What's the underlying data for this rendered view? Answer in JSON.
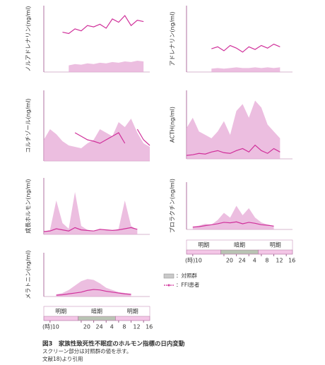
{
  "chart_data": [
    {
      "type": "area",
      "y_label": "ノルアドレナリン(ng/ml)",
      "ylim": [
        0,
        100
      ],
      "x": [
        8,
        10,
        12,
        14,
        16,
        18,
        20,
        22,
        24,
        26,
        28,
        30,
        32,
        34,
        36,
        38,
        40,
        42
      ],
      "series": [
        {
          "color": "#e6a8d6",
          "values": [
            null,
            null,
            null,
            null,
            10,
            12,
            11,
            13,
            12,
            14,
            13,
            15,
            14,
            16,
            15,
            17,
            16,
            null
          ]
        },
        {
          "color": "#d0309a",
          "values": [
            null,
            null,
            null,
            60,
            58,
            65,
            62,
            70,
            68,
            72,
            66,
            80,
            75,
            85,
            70,
            78,
            76,
            null
          ]
        }
      ]
    },
    {
      "type": "area",
      "y_label": "アドレナリン(ng/ml)",
      "ylim": [
        0,
        100
      ],
      "x": [
        8,
        10,
        12,
        14,
        16,
        18,
        20,
        22,
        24,
        26,
        28,
        30,
        32,
        34,
        36,
        38,
        40,
        42
      ],
      "series": [
        {
          "color": "#e6a8d6",
          "values": [
            null,
            null,
            null,
            null,
            5,
            6,
            5,
            6,
            7,
            6,
            6,
            7,
            6,
            7,
            6,
            7,
            null,
            null
          ]
        },
        {
          "color": "#d0309a",
          "values": [
            null,
            null,
            null,
            null,
            35,
            38,
            32,
            40,
            36,
            30,
            38,
            34,
            40,
            36,
            42,
            38,
            null,
            null
          ]
        }
      ]
    },
    {
      "type": "area",
      "y_label": "コルチゾール(ng/ml)",
      "ylim": [
        0,
        100
      ],
      "x": [
        8,
        10,
        12,
        14,
        16,
        18,
        20,
        22,
        24,
        26,
        28,
        30,
        32,
        34,
        36,
        38,
        40,
        42
      ],
      "series": [
        {
          "color": "#e6a8d6",
          "values": [
            30,
            45,
            38,
            28,
            22,
            20,
            18,
            25,
            30,
            45,
            40,
            35,
            55,
            48,
            60,
            40,
            25,
            20
          ]
        },
        {
          "color": "#d0309a",
          "values": [
            null,
            null,
            null,
            null,
            null,
            40,
            35,
            30,
            28,
            25,
            30,
            35,
            40,
            25,
            null,
            45,
            30,
            22
          ]
        }
      ]
    },
    {
      "type": "area",
      "y_label": "ACTH(ng/ml)",
      "ylim": [
        0,
        100
      ],
      "x": [
        8,
        10,
        12,
        14,
        16,
        18,
        20,
        22,
        24,
        26,
        28,
        30,
        32,
        34,
        36,
        38,
        40,
        42
      ],
      "series": [
        {
          "color": "#e6a8d6",
          "values": [
            45,
            60,
            40,
            35,
            30,
            40,
            55,
            35,
            70,
            80,
            60,
            85,
            75,
            50,
            40,
            30,
            null,
            null
          ]
        },
        {
          "color": "#d0309a",
          "values": [
            5,
            6,
            8,
            7,
            10,
            12,
            9,
            8,
            12,
            15,
            10,
            20,
            12,
            8,
            15,
            10,
            null,
            null
          ]
        }
      ]
    },
    {
      "type": "area",
      "y_label": "成長ホルモン(ng/ml)",
      "ylim": [
        0,
        100
      ],
      "x": [
        8,
        10,
        12,
        14,
        16,
        18,
        20,
        22,
        24,
        26,
        28,
        30,
        32,
        34,
        36,
        38,
        40,
        42
      ],
      "series": [
        {
          "color": "#e6a8d6",
          "values": [
            5,
            8,
            60,
            20,
            10,
            75,
            15,
            8,
            5,
            10,
            8,
            6,
            10,
            60,
            15,
            8,
            null,
            null
          ]
        },
        {
          "color": "#d0309a",
          "values": [
            5,
            6,
            10,
            8,
            6,
            12,
            8,
            7,
            6,
            9,
            8,
            7,
            8,
            10,
            12,
            9,
            null,
            null
          ]
        }
      ]
    },
    {
      "type": "area",
      "y_label": "プロラクチン(ng/ml)",
      "ylim": [
        0,
        100
      ],
      "x": [
        8,
        10,
        12,
        14,
        16,
        18,
        20,
        22,
        24,
        26,
        28,
        30,
        32,
        34,
        36,
        38,
        40,
        42
      ],
      "series": [
        {
          "color": "#e6a8d6",
          "values": [
            null,
            5,
            8,
            12,
            10,
            20,
            35,
            25,
            50,
            30,
            45,
            25,
            15,
            10,
            8,
            null,
            null,
            null
          ]
        },
        {
          "color": "#d0309a",
          "values": [
            null,
            5,
            6,
            8,
            10,
            12,
            15,
            14,
            16,
            12,
            15,
            13,
            10,
            9,
            7,
            null,
            null,
            null
          ]
        }
      ]
    },
    {
      "type": "area",
      "y_label": "メラトニン(ng/ml)",
      "ylim": [
        0,
        100
      ],
      "x": [
        8,
        10,
        12,
        14,
        16,
        18,
        20,
        22,
        24,
        26,
        28,
        30,
        32,
        34,
        36,
        38,
        40,
        42
      ],
      "series": [
        {
          "color": "#e6a8d6",
          "values": [
            null,
            null,
            5,
            8,
            15,
            25,
            35,
            40,
            38,
            30,
            20,
            15,
            10,
            8,
            6,
            null,
            null,
            null
          ]
        },
        {
          "color": "#d0309a",
          "values": [
            null,
            null,
            3,
            4,
            6,
            8,
            10,
            14,
            16,
            15,
            12,
            10,
            8,
            6,
            5,
            null,
            null,
            null
          ]
        }
      ]
    }
  ],
  "time_axis": {
    "unit_label": "(時)",
    "xlim": [
      8,
      42
    ],
    "xticks": [
      10,
      20,
      24,
      {
        "value": 28,
        "label": "4"
      },
      {
        "value": 32,
        "label": "8"
      },
      {
        "value": 36,
        "label": "12"
      },
      {
        "value": 40,
        "label": "16"
      }
    ],
    "periods": [
      {
        "label": "明期",
        "start": 8,
        "end": 19,
        "color": "#f3c6e6"
      },
      {
        "label": "暗期",
        "start": 19,
        "end": 31,
        "color": "#b9c4b4"
      },
      {
        "label": "明期",
        "start": 31,
        "end": 42,
        "color": "#f3c6e6"
      }
    ]
  },
  "legend": [
    {
      "label": "：対照群",
      "color": "#c9c9c9"
    },
    {
      "label": "：FFI患者",
      "color": "#d0309a"
    }
  ],
  "caption": {
    "title": "図3　家族性致死性不眠症のホルモン指標の日内変動",
    "note": "スクリーン部分は対照群の値を示す。",
    "source": "文献18)より引用"
  }
}
